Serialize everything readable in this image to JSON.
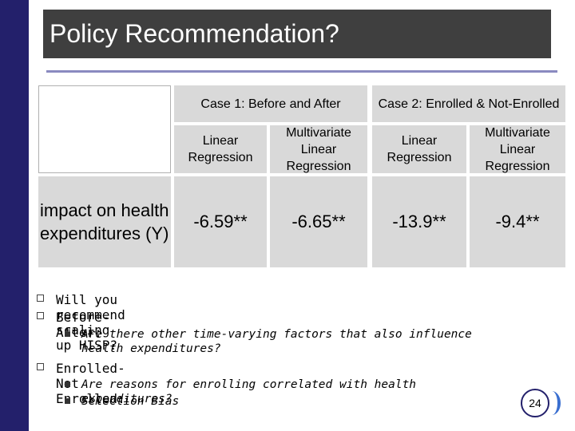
{
  "slide": {
    "title": "Policy Recommendation?",
    "page_number": "24"
  },
  "table": {
    "case1_header": "Case 1: Before and After",
    "case2_header": "Case 2: Enrolled & Not-Enrolled",
    "col_linear": "Linear Regression",
    "col_multivariate": "Multivariate Linear Regression",
    "row_label": "impact on health expenditures (Y)",
    "values": [
      "-6.59**",
      "-6.65**",
      "-13.9**",
      "-9.4**"
    ]
  },
  "bullets": {
    "q1": "Will you recommend scaling up HISP?",
    "q2": "Before-After:",
    "q2_sub1": "Are there other time-varying factors that also influence health expenditures?",
    "q3": "Enrolled-Not Enrolled:",
    "q3_sub1": "Are reasons for enrolling correlated with health expenditures?",
    "q3_sub2": "Selection Bias"
  },
  "colors": {
    "accent": "#23206b",
    "title_bg": "#3f3f3f",
    "cell_bg": "#d9d9d9"
  }
}
